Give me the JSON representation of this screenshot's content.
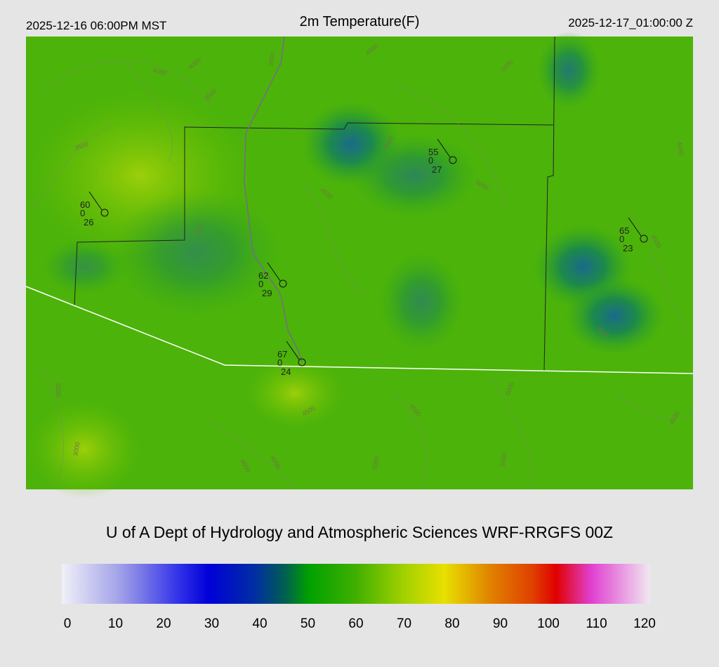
{
  "header": {
    "local_time": "2025-12-16 06:00PM MST",
    "title": "2m Temperature(F)",
    "utc_time": "2025-12-17_01:00:00 Z"
  },
  "map": {
    "contour_labels": [
      3000,
      4000,
      4000,
      3500,
      4000,
      3500,
      4500,
      3500,
      4500,
      5000,
      4500,
      4500,
      4000,
      3500,
      3000,
      4000,
      4000,
      4500,
      4500,
      5000,
      5000,
      4500,
      5000,
      4500
    ]
  },
  "stations": [
    {
      "temperature": 60,
      "precip": 0,
      "dewpoint": 26
    },
    {
      "temperature": 55,
      "precip": 0,
      "dewpoint": 27
    },
    {
      "temperature": 65,
      "precip": 0,
      "dewpoint": 23
    },
    {
      "temperature": 62,
      "precip": 0,
      "dewpoint": 29
    },
    {
      "temperature": 67,
      "precip": 0,
      "dewpoint": 24
    }
  ],
  "footer": "U of A Dept of Hydrology and Atmospheric Sciences WRF-RRGFS 00Z",
  "colorbar": {
    "lim": [
      0,
      120
    ],
    "ticks": [
      0,
      10,
      20,
      30,
      40,
      50,
      60,
      70,
      80,
      90,
      100,
      110,
      120
    ]
  }
}
